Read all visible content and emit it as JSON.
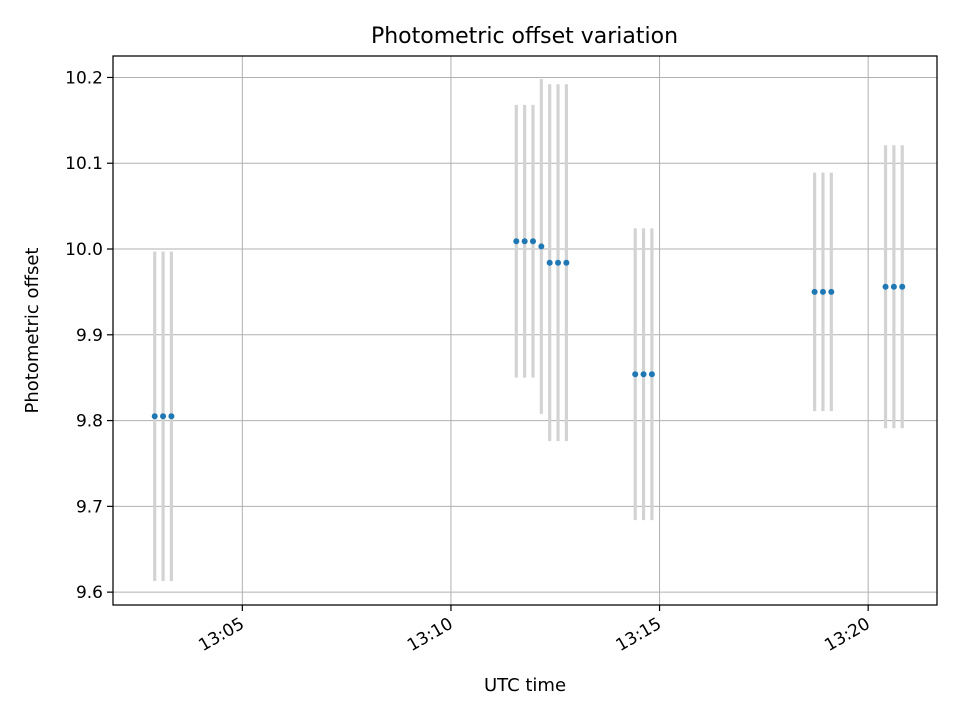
{
  "chart_data": {
    "type": "scatter",
    "title": "Photometric offset variation",
    "xlabel": "UTC time",
    "ylabel": "Photometric offset",
    "x_tick_labels": [
      "13:05",
      "13:10",
      "13:15",
      "13:20"
    ],
    "x_tick_values_minutes": [
      785,
      790,
      795,
      800
    ],
    "y_ticks": [
      9.6,
      9.7,
      9.8,
      9.9,
      10.0,
      10.1,
      10.2
    ],
    "y_tick_labels": [
      "9.6",
      "9.7",
      "9.8",
      "9.9",
      "10.0",
      "10.1",
      "10.2"
    ],
    "xlim_minutes": [
      781.9,
      801.65
    ],
    "ylim": [
      9.585,
      10.225
    ],
    "grid": true,
    "point_color": "#1f77b4",
    "errorbar_color": "#d3d3d3",
    "points": [
      {
        "time": "13:02:54",
        "y": 9.805,
        "err": 0.192
      },
      {
        "time": "13:03:06",
        "y": 9.805,
        "err": 0.192
      },
      {
        "time": "13:03:18",
        "y": 9.805,
        "err": 0.192
      },
      {
        "time": "13:11:34",
        "y": 10.009,
        "err": 0.159
      },
      {
        "time": "13:11:46",
        "y": 10.009,
        "err": 0.159
      },
      {
        "time": "13:11:58",
        "y": 10.009,
        "err": 0.159
      },
      {
        "time": "13:12:10",
        "y": 10.003,
        "err": 0.195
      },
      {
        "time": "13:12:22",
        "y": 9.984,
        "err": 0.208
      },
      {
        "time": "13:12:34",
        "y": 9.984,
        "err": 0.208
      },
      {
        "time": "13:12:46",
        "y": 9.984,
        "err": 0.208
      },
      {
        "time": "13:14:25",
        "y": 9.854,
        "err": 0.17
      },
      {
        "time": "13:14:37",
        "y": 9.854,
        "err": 0.17
      },
      {
        "time": "13:14:49",
        "y": 9.854,
        "err": 0.17
      },
      {
        "time": "13:18:43",
        "y": 9.95,
        "err": 0.139
      },
      {
        "time": "13:18:55",
        "y": 9.95,
        "err": 0.139
      },
      {
        "time": "13:19:07",
        "y": 9.95,
        "err": 0.139
      },
      {
        "time": "13:20:25",
        "y": 9.956,
        "err": 0.165
      },
      {
        "time": "13:20:37",
        "y": 9.956,
        "err": 0.165
      },
      {
        "time": "13:20:49",
        "y": 9.956,
        "err": 0.165
      }
    ]
  }
}
